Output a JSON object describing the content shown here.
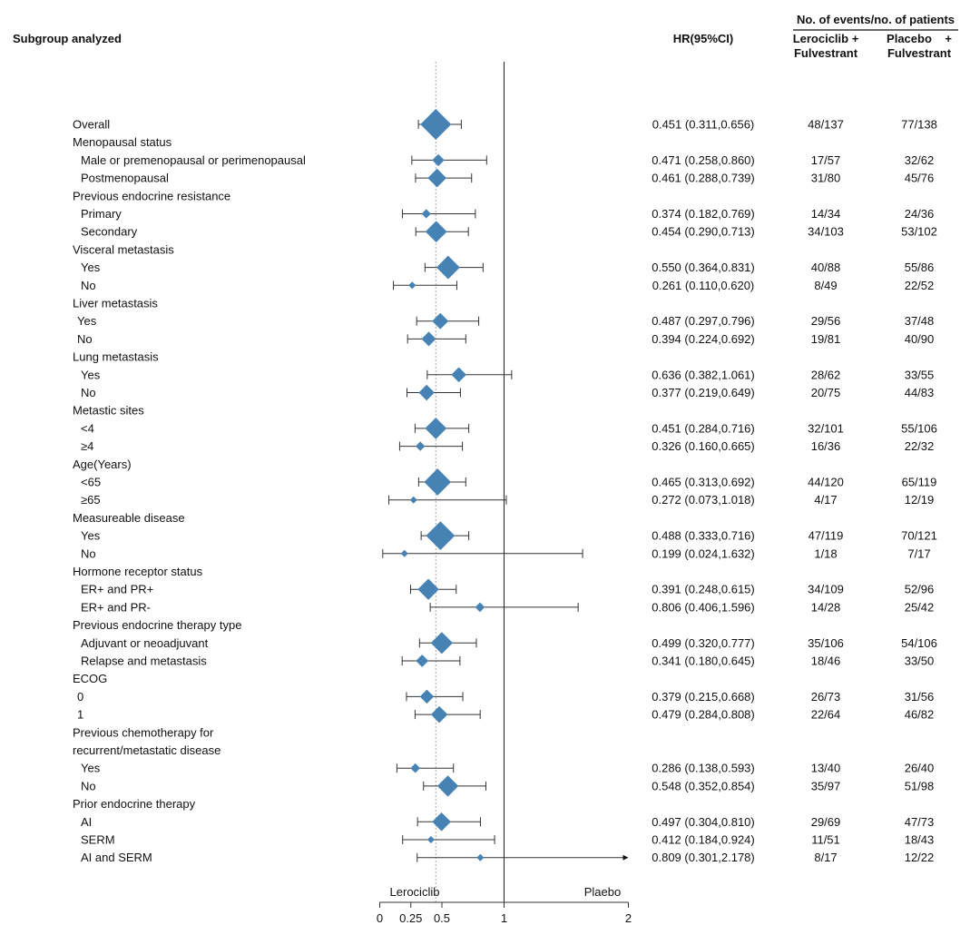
{
  "chart_data": {
    "type": "forest",
    "headers": {
      "subgroup": "Subgroup analyzed",
      "hr": "HR(95%CI)",
      "events_group": "No. of events/no. of patients",
      "arm1_line1": "Lerociclib +",
      "arm1_line2": "Fulvestrant",
      "arm2_line1": "Placebo    +",
      "arm2_line2": "Fulvestrant"
    },
    "xaxis": {
      "ticks": [
        0,
        0.25,
        0.5,
        1,
        2
      ],
      "tick_labels": [
        "0",
        "0.25",
        "0.5",
        "1",
        "2"
      ],
      "range": [
        0,
        2
      ],
      "reference_line": 1,
      "overall_line": 0.451,
      "left_label": "Lerociclib",
      "right_label": "Plaebo"
    },
    "colors": {
      "marker": "#4682b4",
      "line": "#333333"
    },
    "rows": [
      {
        "label": "Overall",
        "level": 0,
        "hr": 0.451,
        "lo": 0.311,
        "hi": 0.656,
        "hr_text": "0.451 (0.311,0.656)",
        "arm1": "48/137",
        "arm2": "77/138"
      },
      {
        "label": "Menopausal status",
        "level": 0
      },
      {
        "label": "Male or premenopausal or perimenopausal",
        "level": 1,
        "hr": 0.471,
        "lo": 0.258,
        "hi": 0.86,
        "hr_text": "0.471 (0.258,0.860)",
        "arm1": "17/57",
        "arm2": "32/62"
      },
      {
        "label": "Postmenopausal",
        "level": 1,
        "hr": 0.461,
        "lo": 0.288,
        "hi": 0.739,
        "hr_text": "0.461 (0.288,0.739)",
        "arm1": "31/80",
        "arm2": "45/76"
      },
      {
        "label": "Previous endocrine resistance",
        "level": 0
      },
      {
        "label": "Primary",
        "level": 1,
        "hr": 0.374,
        "lo": 0.182,
        "hi": 0.769,
        "hr_text": "0.374 (0.182,0.769)",
        "arm1": "14/34",
        "arm2": "24/36"
      },
      {
        "label": "Secondary",
        "level": 1,
        "hr": 0.454,
        "lo": 0.29,
        "hi": 0.713,
        "hr_text": "0.454 (0.290,0.713)",
        "arm1": "34/103",
        "arm2": "53/102"
      },
      {
        "label": "Visceral metastasis",
        "level": 0
      },
      {
        "label": "Yes",
        "level": 1,
        "hr": 0.55,
        "lo": 0.364,
        "hi": 0.831,
        "hr_text": "0.550 (0.364,0.831)",
        "arm1": "40/88",
        "arm2": "55/86"
      },
      {
        "label": "No",
        "level": 1,
        "hr": 0.261,
        "lo": 0.11,
        "hi": 0.62,
        "hr_text": "0.261 (0.110,0.620)",
        "arm1": "8/49",
        "arm2": "22/52"
      },
      {
        "label": "Liver metastasis",
        "level": 0
      },
      {
        "label": "Yes",
        "level": 2,
        "hr": 0.487,
        "lo": 0.297,
        "hi": 0.796,
        "hr_text": "0.487 (0.297,0.796)",
        "arm1": "29/56",
        "arm2": "37/48"
      },
      {
        "label": "No",
        "level": 2,
        "hr": 0.394,
        "lo": 0.224,
        "hi": 0.692,
        "hr_text": "0.394 (0.224,0.692)",
        "arm1": "19/81",
        "arm2": "40/90"
      },
      {
        "label": "Lung metastasis",
        "level": 0
      },
      {
        "label": "Yes",
        "level": 1,
        "hr": 0.636,
        "lo": 0.382,
        "hi": 1.061,
        "hr_text": "0.636 (0.382,1.061)",
        "arm1": "28/62",
        "arm2": "33/55"
      },
      {
        "label": "No",
        "level": 1,
        "hr": 0.377,
        "lo": 0.219,
        "hi": 0.649,
        "hr_text": "0.377 (0.219,0.649)",
        "arm1": "20/75",
        "arm2": "44/83"
      },
      {
        "label": "Metastic sites",
        "level": 0
      },
      {
        "label": "<4",
        "level": 1,
        "hr": 0.451,
        "lo": 0.284,
        "hi": 0.716,
        "hr_text": "0.451 (0.284,0.716)",
        "arm1": "32/101",
        "arm2": "55/106"
      },
      {
        "label": "≥4",
        "level": 1,
        "hr": 0.326,
        "lo": 0.16,
        "hi": 0.665,
        "hr_text": "0.326 (0.160,0.665)",
        "arm1": "16/36",
        "arm2": "22/32"
      },
      {
        "label": "Age(Years)",
        "level": 0
      },
      {
        "label": "<65",
        "level": 1,
        "hr": 0.465,
        "lo": 0.313,
        "hi": 0.692,
        "hr_text": "0.465 (0.313,0.692)",
        "arm1": "44/120",
        "arm2": "65/119"
      },
      {
        "label": "≥65",
        "level": 1,
        "hr": 0.272,
        "lo": 0.073,
        "hi": 1.018,
        "hr_text": "0.272 (0.073,1.018)",
        "arm1": "4/17",
        "arm2": "12/19"
      },
      {
        "label": "Measureable disease",
        "level": 0
      },
      {
        "label": "Yes",
        "level": 1,
        "hr": 0.488,
        "lo": 0.333,
        "hi": 0.716,
        "hr_text": "0.488 (0.333,0.716)",
        "arm1": "47/119",
        "arm2": "70/121"
      },
      {
        "label": "No",
        "level": 1,
        "hr": 0.199,
        "lo": 0.024,
        "hi": 1.632,
        "hr_text": "0.199 (0.024,1.632)",
        "arm1": "1/18",
        "arm2": "7/17"
      },
      {
        "label": "Hormone receptor status",
        "level": 0
      },
      {
        "label": "ER+ and PR+",
        "level": 1,
        "hr": 0.391,
        "lo": 0.248,
        "hi": 0.615,
        "hr_text": "0.391 (0.248,0.615)",
        "arm1": "34/109",
        "arm2": "52/96"
      },
      {
        "label": "ER+ and PR-",
        "level": 1,
        "hr": 0.806,
        "lo": 0.406,
        "hi": 1.596,
        "hr_text": "0.806 (0.406,1.596)",
        "arm1": "14/28",
        "arm2": "25/42"
      },
      {
        "label": "Previous endocrine therapy type",
        "level": 0
      },
      {
        "label": "Adjuvant or neoadjuvant",
        "level": 1,
        "hr": 0.499,
        "lo": 0.32,
        "hi": 0.777,
        "hr_text": "0.499 (0.320,0.777)",
        "arm1": "35/106",
        "arm2": "54/106"
      },
      {
        "label": "Relapse and metastasis",
        "level": 1,
        "hr": 0.341,
        "lo": 0.18,
        "hi": 0.645,
        "hr_text": "0.341 (0.180,0.645)",
        "arm1": "18/46",
        "arm2": "33/50"
      },
      {
        "label": "ECOG",
        "level": 0
      },
      {
        "label": "0",
        "level": 2,
        "hr": 0.379,
        "lo": 0.215,
        "hi": 0.668,
        "hr_text": "0.379 (0.215,0.668)",
        "arm1": "26/73",
        "arm2": "31/56"
      },
      {
        "label": "1",
        "level": 2,
        "hr": 0.479,
        "lo": 0.284,
        "hi": 0.808,
        "hr_text": "0.479 (0.284,0.808)",
        "arm1": "22/64",
        "arm2": "46/82"
      },
      {
        "label": "Previous chemotherapy for",
        "level": 0
      },
      {
        "label": "recurrent/metastatic disease",
        "level": 0
      },
      {
        "label": "Yes",
        "level": 1,
        "hr": 0.286,
        "lo": 0.138,
        "hi": 0.593,
        "hr_text": "0.286 (0.138,0.593)",
        "arm1": "13/40",
        "arm2": "26/40"
      },
      {
        "label": "No",
        "level": 1,
        "hr": 0.548,
        "lo": 0.352,
        "hi": 0.854,
        "hr_text": "0.548 (0.352,0.854)",
        "arm1": "35/97",
        "arm2": "51/98"
      },
      {
        "label": "Prior endocrine therapy",
        "level": 0
      },
      {
        "label": "AI",
        "level": 1,
        "hr": 0.497,
        "lo": 0.304,
        "hi": 0.81,
        "hr_text": "0.497 (0.304,0.810)",
        "arm1": "29/69",
        "arm2": "47/73"
      },
      {
        "label": "SERM",
        "level": 1,
        "hr": 0.412,
        "lo": 0.184,
        "hi": 0.924,
        "hr_text": "0.412 (0.184,0.924)",
        "arm1": "11/51",
        "arm2": "18/43"
      },
      {
        "label": "AI and SERM",
        "level": 1,
        "hr": 0.809,
        "lo": 0.301,
        "hi": 2.178,
        "hr_text": "0.809 (0.301,2.178)",
        "arm1": "8/17",
        "arm2": "12/22"
      }
    ]
  }
}
